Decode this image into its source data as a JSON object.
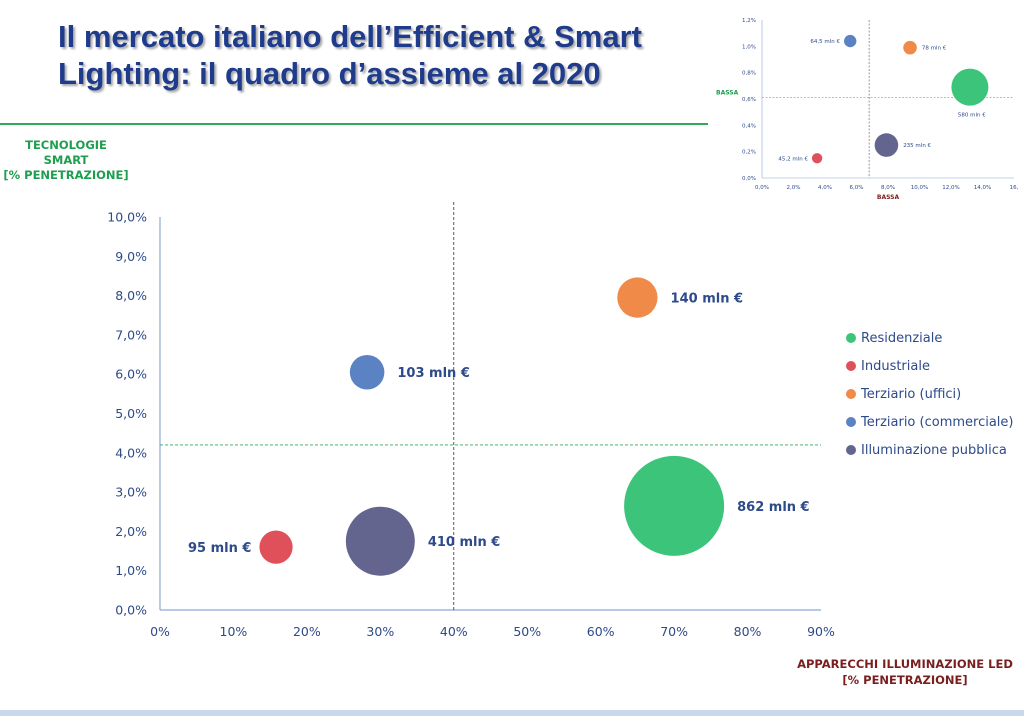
{
  "title": "Il mercato italiano dell’Efficient & Smart Lighting: il quadro d’assieme al 2020",
  "colors": {
    "title": "#1F3B8C",
    "rule": "#2EAA5A",
    "residenziale": "#3CC47A",
    "industriale": "#E0505A",
    "terziario_uffici": "#F08A48",
    "terziario_commerciale": "#5B82C2",
    "illuminazione_pubblica": "#64658E"
  },
  "chart_data": [
    {
      "type": "bubble",
      "title": "",
      "ylabel": "TECNOLOGIE SMART [% PENETRAZIONE]",
      "ylabel_lines": [
        "TECNOLOGIE",
        "SMART",
        "[% PENETRAZIONE]"
      ],
      "xlabel": "APPARECCHI ILLUMINAZIONE LED [% PENETRAZIONE]",
      "xlabel_lines": [
        "APPARECCHI ILLUMINAZIONE LED",
        "[% PENETRAZIONE]"
      ],
      "xlim": [
        0,
        90
      ],
      "ylim": [
        0,
        10
      ],
      "xticks": [
        "0%",
        "10%",
        "20%",
        "30%",
        "40%",
        "50%",
        "60%",
        "70%",
        "80%",
        "90%"
      ],
      "yticks": [
        "0,0%",
        "1,0%",
        "2,0%",
        "3,0%",
        "4,0%",
        "5,0%",
        "6,0%",
        "7,0%",
        "8,0%",
        "9,0%",
        "10,0%"
      ],
      "reference_lines": {
        "x": 40,
        "y": 4.2
      },
      "legend_position": "right",
      "series": [
        {
          "name": "Residenziale",
          "x": 70,
          "y": 2.65,
          "value": 862,
          "label": "862 mln €",
          "color": "#3CC47A"
        },
        {
          "name": "Industriale",
          "x": 15.8,
          "y": 1.6,
          "value": 95,
          "label": "95 mln €",
          "color": "#E0505A"
        },
        {
          "name": "Terziario (uffici)",
          "x": 65,
          "y": 7.95,
          "value": 140,
          "label": "140 mln €",
          "color": "#F08A48"
        },
        {
          "name": "Terziario (commerciale)",
          "x": 28.2,
          "y": 6.05,
          "value": 103,
          "label": "103 mln €",
          "color": "#5B82C2"
        },
        {
          "name": "Illuminazione pubblica",
          "x": 30,
          "y": 1.75,
          "value": 410,
          "label": "410 mln €",
          "color": "#64658E"
        }
      ]
    },
    {
      "type": "bubble",
      "title": "",
      "ylabel": "BASSA",
      "xlabel": "BASSA",
      "xlim": [
        0,
        16
      ],
      "ylim": [
        0,
        1.2
      ],
      "xticks": [
        "0,0%",
        "2,0%",
        "4,0%",
        "6,0%",
        "8,0%",
        "10,0%",
        "12,0%",
        "14,0%",
        "16,"
      ],
      "yticks": [
        "0,0%",
        "0,2%",
        "0,4%",
        "0,6%",
        "0,8%",
        "1,0%",
        "1,2%"
      ],
      "reference_lines": {
        "x": 6.8,
        "y": 0.61
      },
      "series": [
        {
          "name": "Residenziale",
          "x": 13.2,
          "y": 0.69,
          "value": 580,
          "label": "580 mln €",
          "color": "#3CC47A"
        },
        {
          "name": "Industriale",
          "x": 3.5,
          "y": 0.15,
          "value": 45.2,
          "label": "45,2 mln €",
          "color": "#E0505A"
        },
        {
          "name": "Terziario (uffici)",
          "x": 9.4,
          "y": 0.99,
          "value": 78,
          "label": "78 mln €",
          "color": "#F08A48"
        },
        {
          "name": "Terziario (commerciale)",
          "x": 5.6,
          "y": 1.04,
          "value": 64.5,
          "label": "64,5 mln €",
          "color": "#5B82C2"
        },
        {
          "name": "Illuminazione pubblica",
          "x": 7.9,
          "y": 0.25,
          "value": 235,
          "label": "235 mln €",
          "color": "#64658E"
        }
      ]
    }
  ]
}
